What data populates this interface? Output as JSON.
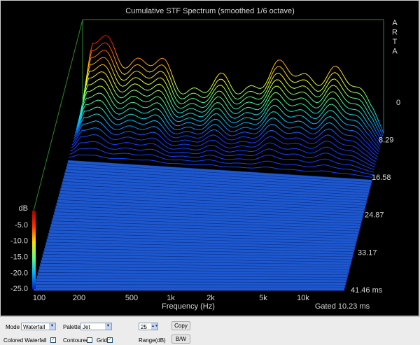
{
  "window": {
    "title": "Cumulative STF Spectrum (smoothed 1/6 octave)",
    "brand_letters": [
      "A",
      "R",
      "T",
      "A"
    ],
    "x_axis": {
      "label": "Frequency (Hz)",
      "ticks": [
        "100",
        "200",
        "500",
        "1k",
        "2k",
        "5k",
        "10k"
      ]
    },
    "depth_axis": {
      "ticks": [
        "0",
        "8.29",
        "16.58",
        "24.87",
        "33.17",
        "41.46 ms"
      ]
    },
    "colorbar": {
      "unit": "dB",
      "ticks": [
        "-5.0",
        "-10.0",
        "-15.0",
        "-20.0",
        "-25.0"
      ]
    },
    "gated": "Gated 10.23 ms",
    "controls": {
      "mode_label": "Mode",
      "mode_value": "Waterfall",
      "palette_label": "Palette",
      "palette_value": "Jet",
      "range_value": "25",
      "range_label": "Range(dB)",
      "copy_button": "Copy",
      "bw_button": "B/W",
      "colored_waterfall": "Colored Waterfall",
      "contoured": "Contoured",
      "grid": "Grid"
    }
  }
}
